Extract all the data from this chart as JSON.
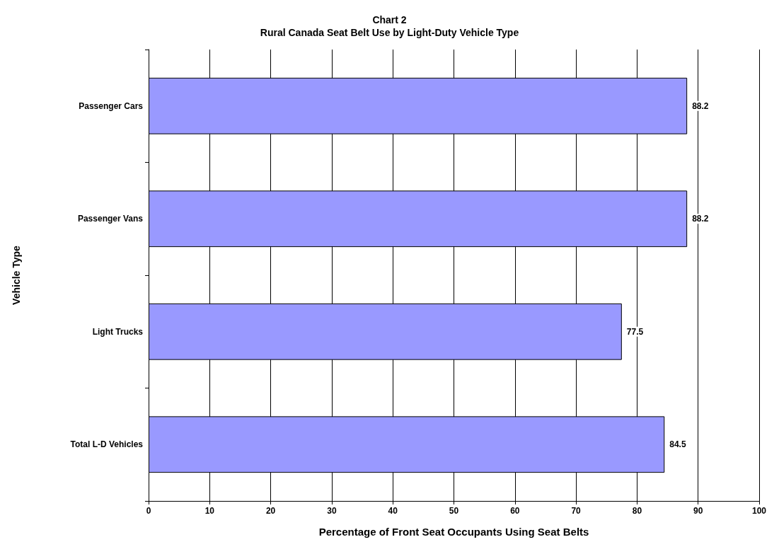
{
  "chart_data": {
    "type": "bar",
    "orientation": "horizontal",
    "title": "Chart 2",
    "subtitle": "Rural Canada Seat Belt Use by Light-Duty Vehicle Type",
    "xlabel": "Percentage of Front Seat Occupants Using Seat Belts",
    "ylabel": "Vehicle Type",
    "categories": [
      "Passenger Cars",
      "Passenger Vans",
      "Light Trucks",
      "Total L-D Vehicles"
    ],
    "values": [
      88.2,
      88.2,
      77.5,
      84.5
    ],
    "color": "#9999ff",
    "xlim": [
      0,
      100
    ],
    "xticks": [
      0,
      10,
      20,
      30,
      40,
      50,
      60,
      70,
      80,
      90,
      100
    ],
    "grid": "x",
    "data_labels": true
  }
}
